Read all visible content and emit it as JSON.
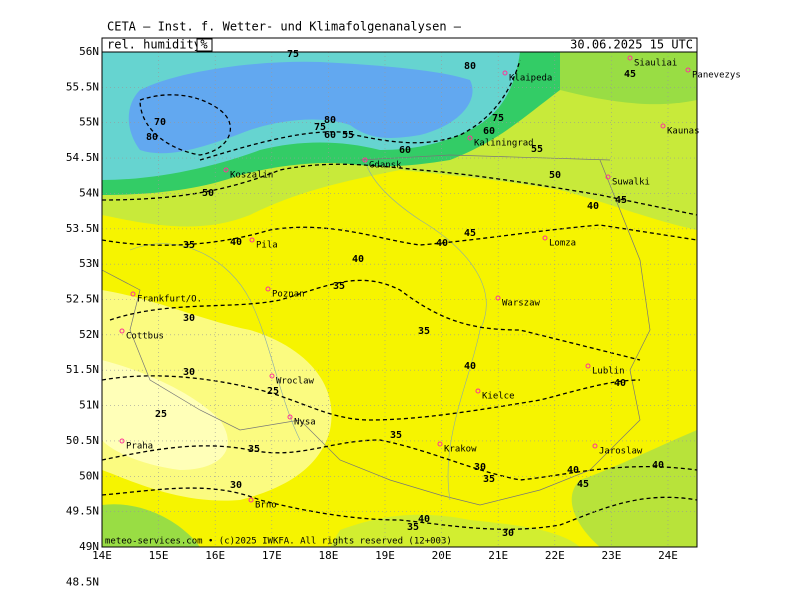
{
  "header": {
    "title": "CETA — Inst. f. Wetter- und Klimafolgenanalysen —",
    "parameter": "rel. humidity",
    "unit": "%",
    "valid_time": "30.06.2025 15 UTC"
  },
  "axes": {
    "lon_labels": [
      "14E",
      "15E",
      "16E",
      "17E",
      "18E",
      "19E",
      "20E",
      "21E",
      "22E",
      "23E",
      "24E"
    ],
    "lat_labels": [
      "56N",
      "55.5N",
      "55N",
      "54.5N",
      "54N",
      "53.5N",
      "53N",
      "52.5N",
      "52N",
      "51.5N",
      "51N",
      "50.5N",
      "50N",
      "49.5N",
      "49N",
      "48.5N"
    ]
  },
  "cities": [
    "Siauliai",
    "Panevezys",
    "Klaipeda",
    "Kaunas",
    "Kaliningrad",
    "Koszalin",
    "Gdansk",
    "Suwalki",
    "Pila",
    "Lomza",
    "Frankfurt/O.",
    "Poznan",
    "Warszaw",
    "Cottbus",
    "Lublin",
    "Wroclaw",
    "Kielce",
    "Nysa",
    "Praha",
    "Krakow",
    "Jaroslaw",
    "Brno"
  ],
  "contour_labels": [
    75,
    80,
    45,
    70,
    80,
    80,
    75,
    60,
    55,
    60,
    75,
    60,
    55,
    50,
    45,
    40,
    50,
    45,
    40,
    40,
    35,
    40,
    35,
    30,
    35,
    40,
    40,
    30,
    25,
    25,
    35,
    35,
    30,
    35,
    40,
    40,
    45,
    30,
    40,
    35,
    30
  ],
  "footer": "meteo-services.com • (c)2025 IWKFA. All rights reserved (12+003)"
}
